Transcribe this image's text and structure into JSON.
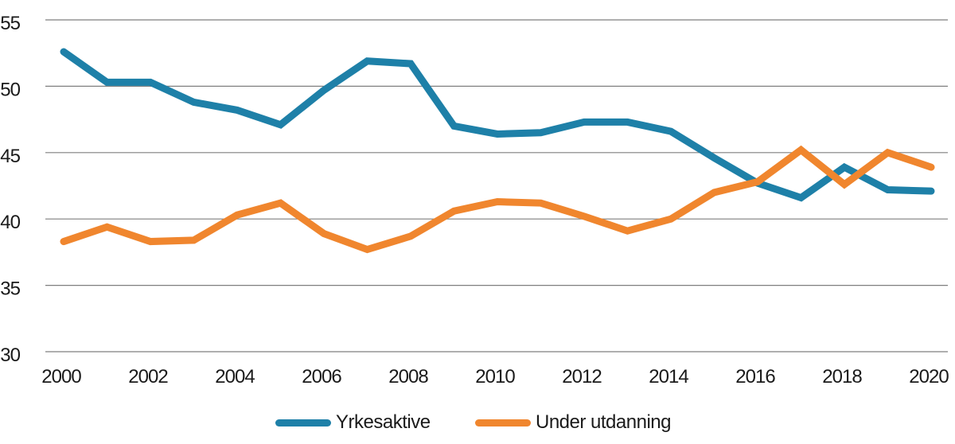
{
  "chart_data": {
    "type": "line",
    "title": "",
    "x": [
      2000,
      2001,
      2002,
      2003,
      2004,
      2005,
      2006,
      2007,
      2008,
      2009,
      2010,
      2011,
      2012,
      2013,
      2014,
      2015,
      2016,
      2017,
      2018,
      2019,
      2020
    ],
    "x_tick_labels": [
      "2000",
      "2002",
      "2004",
      "2006",
      "2008",
      "2010",
      "2012",
      "2014",
      "2016",
      "2018",
      "2020"
    ],
    "series": [
      {
        "name": "Yrkesaktive",
        "color": "#1E80A8",
        "values": [
          52.6,
          50.3,
          50.3,
          48.8,
          48.2,
          47.1,
          49.7,
          51.9,
          51.7,
          47.0,
          46.4,
          46.5,
          47.3,
          47.3,
          46.6,
          44.6,
          42.7,
          41.6,
          43.9,
          42.2,
          42.1
        ]
      },
      {
        "name": "Under utdanning",
        "color": "#F0862E",
        "values": [
          38.3,
          39.4,
          38.3,
          38.4,
          40.3,
          41.2,
          38.9,
          37.7,
          38.7,
          40.6,
          41.3,
          41.2,
          40.2,
          39.1,
          40.0,
          42.0,
          42.8,
          45.2,
          42.6,
          45.0,
          43.9
        ]
      }
    ],
    "ylim": [
      30,
      55
    ],
    "yticks": [
      30,
      35,
      40,
      45,
      50,
      55
    ],
    "grid": "horizontal-only",
    "legend_position": "bottom-center"
  },
  "colors": {
    "gridline": "#7f7f7f",
    "axis_text": "#1a1a1a",
    "background": "#ffffff"
  }
}
